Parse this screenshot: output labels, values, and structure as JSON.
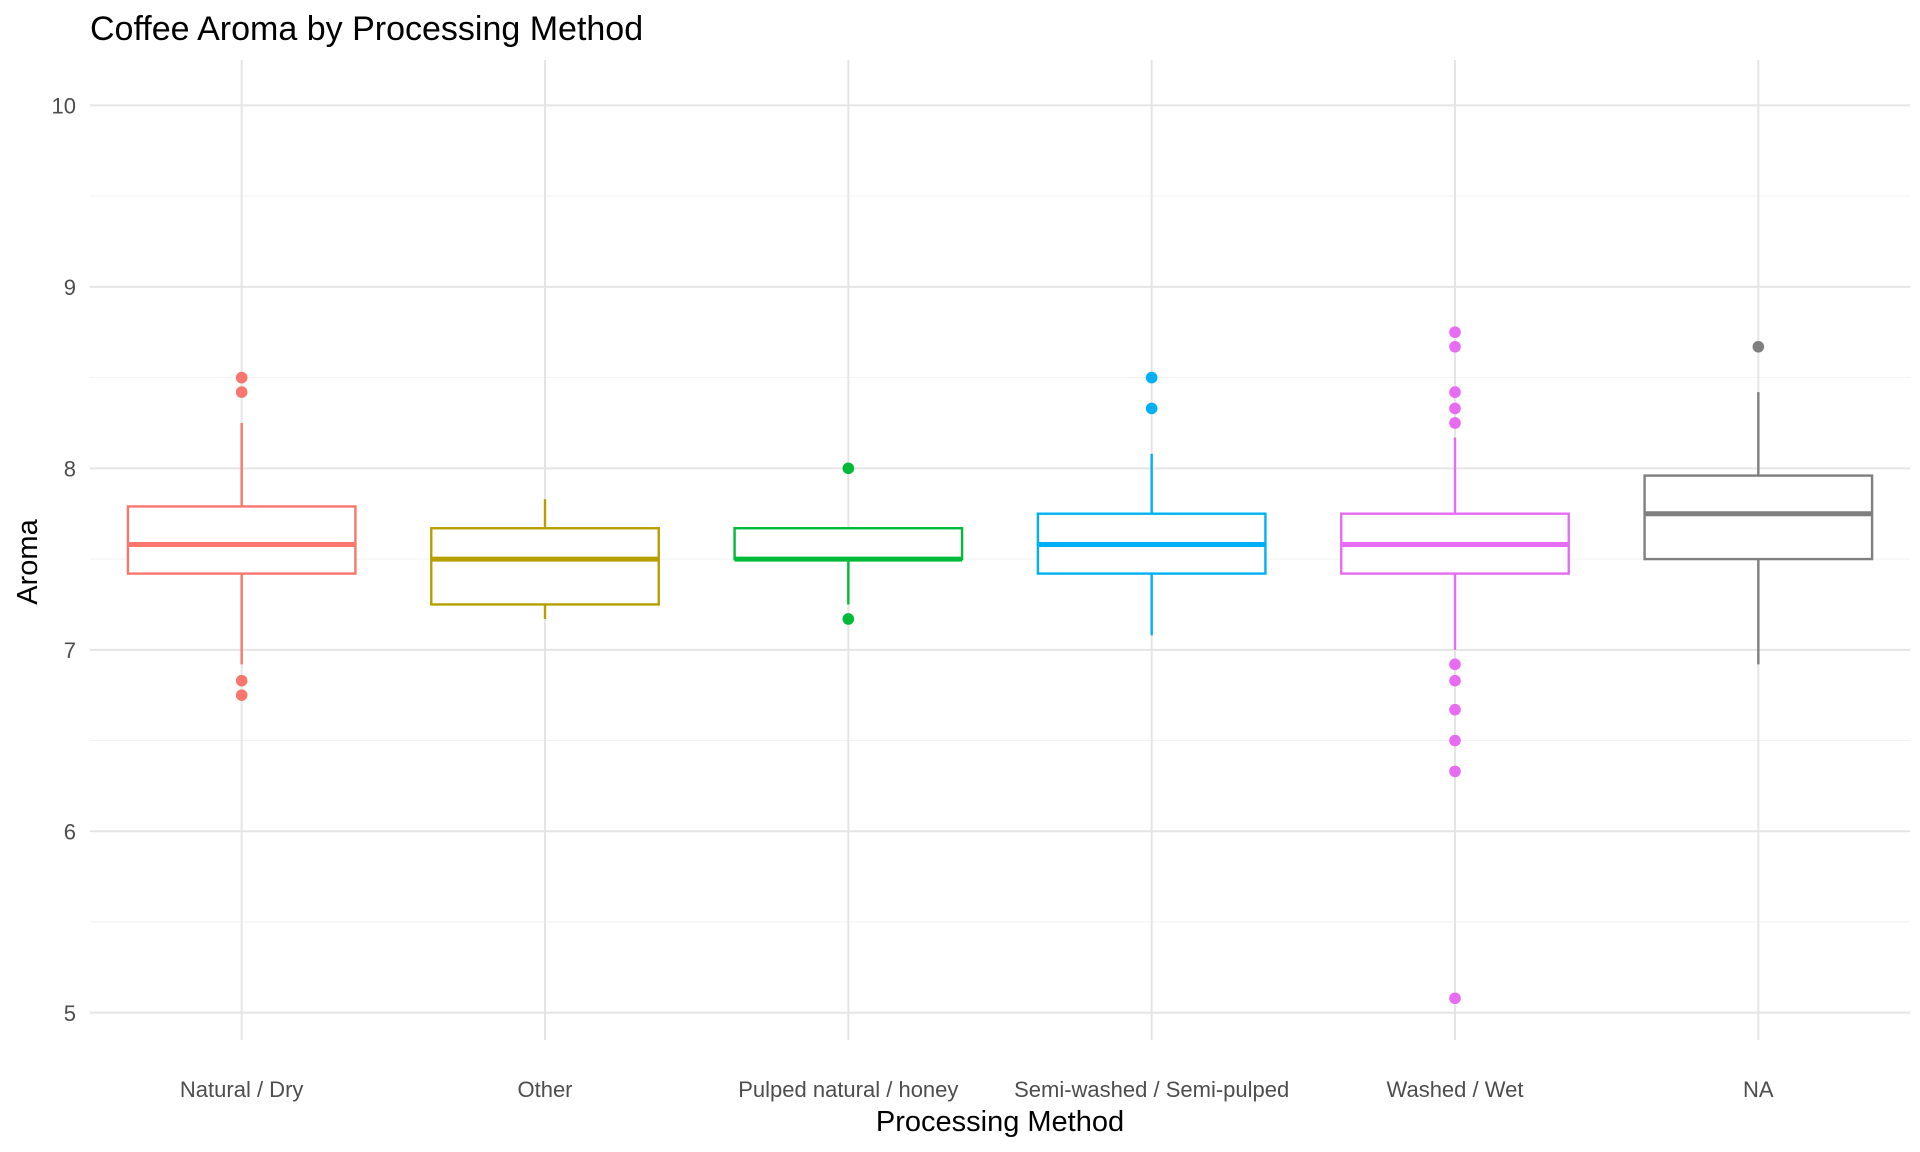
{
  "chart_data": {
    "type": "box",
    "title": "Coffee Aroma by Processing Method",
    "xlabel": "Processing Method",
    "ylabel": "Aroma",
    "ylim": [
      4.85,
      10.25
    ],
    "y_ticks": [
      5,
      6,
      7,
      8,
      9,
      10
    ],
    "grid": true,
    "legend": "none",
    "categories": [
      "Natural / Dry",
      "Other",
      "Pulped natural / honey",
      "Semi-washed / Semi-pulped",
      "Washed / Wet",
      "NA"
    ],
    "series": [
      {
        "category": "Natural / Dry",
        "color": "#F8766D",
        "whisker_low": 6.92,
        "q1": 7.42,
        "median": 7.58,
        "q3": 7.79,
        "whisker_high": 8.25,
        "outliers": [
          8.5,
          8.42,
          6.83,
          6.75
        ]
      },
      {
        "category": "Other",
        "color": "#B79F00",
        "whisker_low": 7.17,
        "q1": 7.25,
        "median": 7.5,
        "q3": 7.67,
        "whisker_high": 7.83,
        "outliers": []
      },
      {
        "category": "Pulped natural / honey",
        "color": "#00BA38",
        "whisker_low": 7.25,
        "q1": 7.5,
        "median": 7.5,
        "q3": 7.67,
        "whisker_high": 7.67,
        "outliers": [
          8.0,
          7.17
        ]
      },
      {
        "category": "Semi-washed / Semi-pulped",
        "color": "#00B0F6",
        "whisker_low": 7.08,
        "q1": 7.42,
        "median": 7.58,
        "q3": 7.75,
        "whisker_high": 8.08,
        "outliers": [
          8.5,
          8.33
        ]
      },
      {
        "category": "Washed / Wet",
        "color": "#E76BF3",
        "whisker_low": 7.0,
        "q1": 7.42,
        "median": 7.58,
        "q3": 7.75,
        "whisker_high": 8.17,
        "outliers": [
          8.75,
          8.67,
          8.42,
          8.33,
          8.25,
          6.92,
          6.83,
          6.67,
          6.5,
          6.33,
          5.08
        ]
      },
      {
        "category": "NA",
        "color": "#7F7F7F",
        "whisker_low": 6.92,
        "q1": 7.5,
        "median": 7.75,
        "q3": 7.96,
        "whisker_high": 8.42,
        "outliers": [
          8.67
        ]
      }
    ]
  }
}
